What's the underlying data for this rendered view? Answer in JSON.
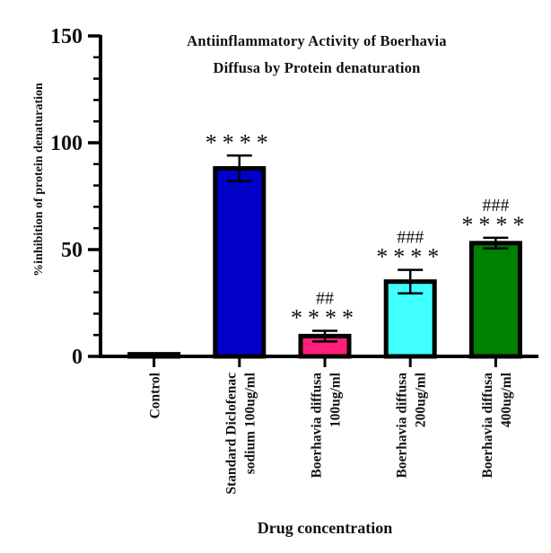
{
  "chart_data": {
    "type": "bar",
    "title_lines": [
      "Antiinflammatory Activity of Boerhavia",
      "Diffusa by Protein denaturation"
    ],
    "xlabel": "Drug concentration",
    "ylabel": "%inhibition of protein denaturation",
    "ylim": [
      0,
      150
    ],
    "yticks": [
      "0",
      "50",
      "100",
      "150"
    ],
    "categories": [
      [
        "Control"
      ],
      [
        "Standard Diclofenac",
        "sodium  100ug/ml"
      ],
      [
        "Boerhavia diffusa",
        "100ug/ml"
      ],
      [
        "Boerhavia diffusa",
        "200ug/ml"
      ],
      [
        "Boerhavia diffusa",
        "400ug/ml"
      ]
    ],
    "values": [
      1,
      88,
      9.5,
      35,
      53
    ],
    "errors": [
      0,
      6,
      2.5,
      5.5,
      2.5
    ],
    "colors": [
      "#ffffff",
      "#0000c8",
      "#ff1f7a",
      "#40ffff",
      "#008000"
    ],
    "significance": [
      "",
      "****",
      "****",
      "****",
      "****"
    ],
    "comparison_marks": [
      "",
      "",
      "##",
      "###",
      "###"
    ]
  }
}
